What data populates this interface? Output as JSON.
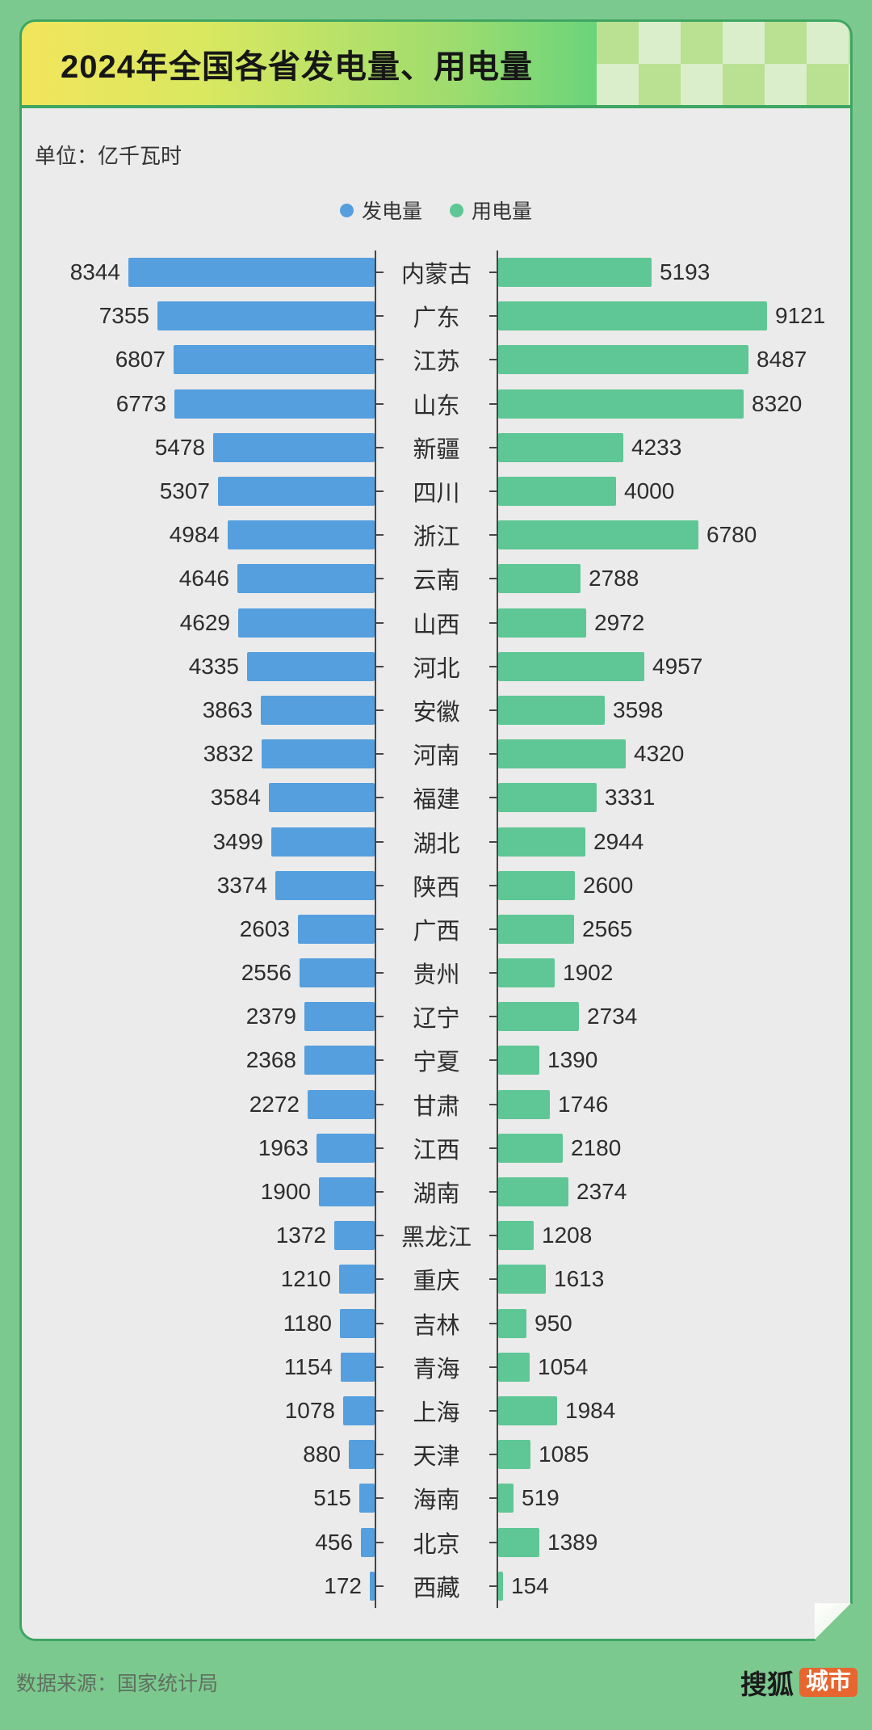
{
  "header": {
    "title": "2024年全国各省发电量、用电量"
  },
  "unit_label": "单位：亿千瓦时",
  "legend": [
    {
      "label": "发电量",
      "color": "#559fde"
    },
    {
      "label": "用电量",
      "color": "#5ec795"
    }
  ],
  "chart_data": {
    "type": "bar",
    "variant": "bidirectional-horizontal",
    "unit": "亿千瓦时",
    "categories": [
      "内蒙古",
      "广东",
      "江苏",
      "山东",
      "新疆",
      "四川",
      "浙江",
      "云南",
      "山西",
      "河北",
      "安徽",
      "河南",
      "福建",
      "湖北",
      "陕西",
      "广西",
      "贵州",
      "辽宁",
      "宁夏",
      "甘肃",
      "江西",
      "湖南",
      "黑龙江",
      "重庆",
      "吉林",
      "青海",
      "上海",
      "天津",
      "海南",
      "北京",
      "西藏"
    ],
    "series": [
      {
        "name": "发电量",
        "side": "left",
        "color": "#559fde",
        "values": [
          8344,
          7355,
          6807,
          6773,
          5478,
          5307,
          4984,
          4646,
          4629,
          4335,
          3863,
          3832,
          3584,
          3499,
          3374,
          2603,
          2556,
          2379,
          2368,
          2272,
          1963,
          1900,
          1372,
          1210,
          1180,
          1154,
          1078,
          880,
          515,
          456,
          172
        ]
      },
      {
        "name": "用电量",
        "side": "right",
        "color": "#5ec795",
        "values": [
          5193,
          9121,
          8487,
          8320,
          4233,
          4000,
          6780,
          2788,
          2972,
          4957,
          3598,
          4320,
          3331,
          2944,
          2600,
          2565,
          1902,
          2734,
          1390,
          1746,
          2180,
          2374,
          1208,
          1613,
          950,
          1054,
          1984,
          1085,
          519,
          1389,
          154
        ]
      }
    ],
    "value_labels": "shown at bar ends",
    "axis": {
      "center_axes": true,
      "ticks_per_row": true
    },
    "legend_position": "top-center"
  },
  "footer": {
    "source": "数据来源：国家统计局",
    "brand": {
      "name": "搜狐",
      "badge": "城市"
    }
  }
}
